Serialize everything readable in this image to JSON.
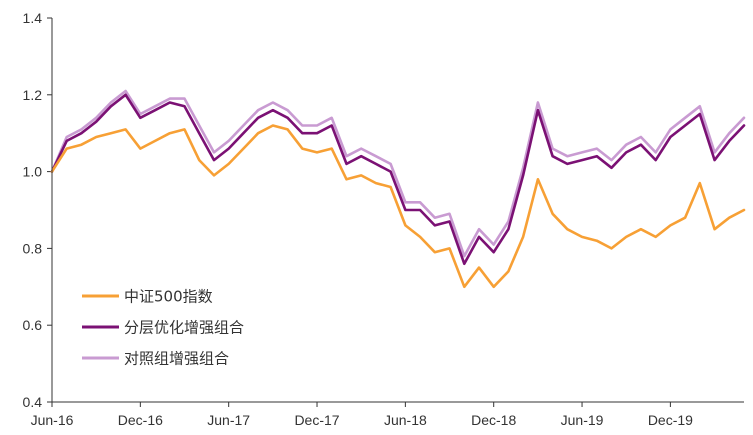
{
  "chart_data": {
    "type": "line",
    "title": "",
    "xlabel": "",
    "ylabel": "",
    "x_ticks": [
      "Jun-16",
      "Dec-16",
      "Jun-17",
      "Dec-17",
      "Jun-18",
      "Dec-18",
      "Jun-19",
      "Dec-19"
    ],
    "y_ticks": [
      "0.4",
      "0.6",
      "0.8",
      "1.0",
      "1.2",
      "1.4"
    ],
    "ylim": [
      0.4,
      1.4
    ],
    "xlim": [
      "2016-06",
      "2020-05"
    ],
    "grid": false,
    "legend_position": "bottom-left",
    "x": [
      "2016-06",
      "2016-07",
      "2016-08",
      "2016-09",
      "2016-10",
      "2016-11",
      "2016-12",
      "2017-01",
      "2017-02",
      "2017-03",
      "2017-04",
      "2017-05",
      "2017-06",
      "2017-07",
      "2017-08",
      "2017-09",
      "2017-10",
      "2017-11",
      "2017-12",
      "2018-01",
      "2018-02",
      "2018-03",
      "2018-04",
      "2018-05",
      "2018-06",
      "2018-07",
      "2018-08",
      "2018-09",
      "2018-10",
      "2018-11",
      "2018-12",
      "2019-01",
      "2019-02",
      "2019-03",
      "2019-04",
      "2019-05",
      "2019-06",
      "2019-07",
      "2019-08",
      "2019-09",
      "2019-10",
      "2019-11",
      "2019-12",
      "2020-01",
      "2020-02",
      "2020-03",
      "2020-04",
      "2020-05"
    ],
    "series": [
      {
        "name": "中证500指数",
        "color": "#F7A035",
        "values": [
          1.0,
          1.06,
          1.07,
          1.09,
          1.1,
          1.11,
          1.06,
          1.08,
          1.1,
          1.11,
          1.03,
          0.99,
          1.02,
          1.06,
          1.1,
          1.12,
          1.11,
          1.06,
          1.05,
          1.06,
          0.98,
          0.99,
          0.97,
          0.96,
          0.86,
          0.83,
          0.79,
          0.8,
          0.7,
          0.75,
          0.7,
          0.74,
          0.83,
          0.98,
          0.89,
          0.85,
          0.83,
          0.82,
          0.8,
          0.83,
          0.85,
          0.83,
          0.86,
          0.88,
          0.97,
          0.85,
          0.88,
          0.9
        ]
      },
      {
        "name": "分层优化增强组合",
        "color": "#7B1174",
        "values": [
          1.0,
          1.08,
          1.1,
          1.13,
          1.17,
          1.2,
          1.14,
          1.16,
          1.18,
          1.17,
          1.1,
          1.03,
          1.06,
          1.1,
          1.14,
          1.16,
          1.14,
          1.1,
          1.1,
          1.12,
          1.02,
          1.04,
          1.02,
          1.0,
          0.9,
          0.9,
          0.86,
          0.87,
          0.76,
          0.83,
          0.79,
          0.85,
          0.99,
          1.16,
          1.04,
          1.02,
          1.03,
          1.04,
          1.01,
          1.05,
          1.07,
          1.03,
          1.09,
          1.12,
          1.15,
          1.03,
          1.08,
          1.12
        ]
      },
      {
        "name": "对照组增强组合",
        "color": "#C99BD2",
        "values": [
          1.0,
          1.09,
          1.11,
          1.14,
          1.18,
          1.21,
          1.15,
          1.17,
          1.19,
          1.19,
          1.12,
          1.05,
          1.08,
          1.12,
          1.16,
          1.18,
          1.16,
          1.12,
          1.12,
          1.14,
          1.04,
          1.06,
          1.04,
          1.02,
          0.92,
          0.92,
          0.88,
          0.89,
          0.78,
          0.85,
          0.81,
          0.87,
          1.01,
          1.18,
          1.06,
          1.04,
          1.05,
          1.06,
          1.03,
          1.07,
          1.09,
          1.05,
          1.11,
          1.14,
          1.17,
          1.05,
          1.1,
          1.14
        ]
      }
    ]
  }
}
